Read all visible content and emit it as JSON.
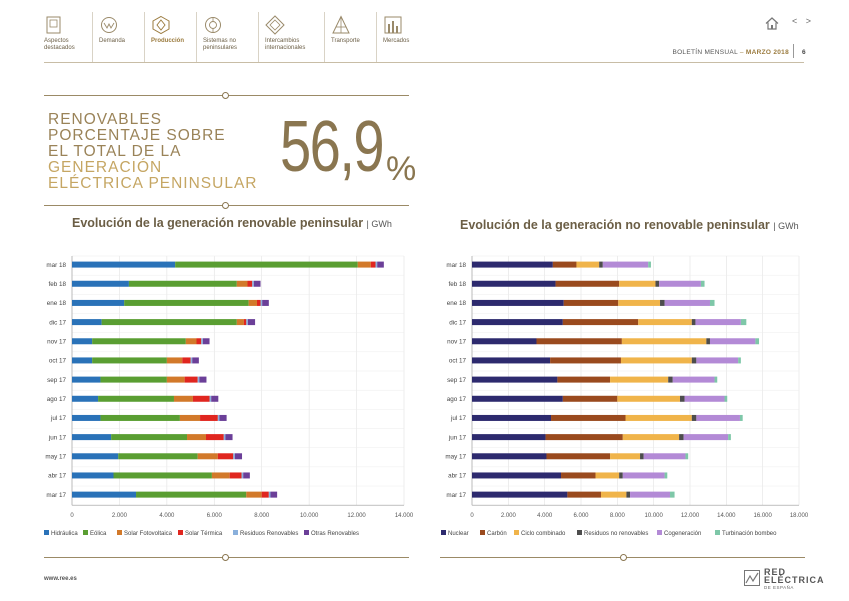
{
  "nav": {
    "items": [
      {
        "label": "Aspectos destacados",
        "icon": "document-icon"
      },
      {
        "label": "Demanda",
        "icon": "demand-icon"
      },
      {
        "label": "Producción",
        "icon": "production-icon"
      },
      {
        "label": "Sistemas no peninsulares",
        "icon": "islands-icon"
      },
      {
        "label": "Intercambios internacionales",
        "icon": "exchange-icon"
      },
      {
        "label": "Transporte",
        "icon": "tower-icon"
      },
      {
        "label": "Mercados",
        "icon": "market-icon"
      }
    ],
    "active_index": 2
  },
  "header": {
    "bulletin": "BOLETÍN MENSUAL",
    "separator": "–",
    "month": "MARZO 2018",
    "page": "6",
    "arrows": "< >"
  },
  "hero": {
    "line1": "RENOVABLES",
    "line2": "PORCENTAJE SOBRE",
    "line3a": "EL TOTAL DE LA",
    "line3b": "GENERACIÓN",
    "line4": "ELÉCTRICA PENINSULAR",
    "value": "56,9",
    "unit": "%"
  },
  "colors": {
    "accent": "#8a7650",
    "gold": "#c5a663",
    "title": "#6b5e45"
  },
  "footer": {
    "url": "www.ree.es",
    "logo_main": "RED ELÉCTRICA",
    "logo_sub": "DE ESPAÑA"
  },
  "chart_data": [
    {
      "type": "bar",
      "orientation": "horizontal",
      "stacked": true,
      "title": "Evolución de la generación renovable peninsular",
      "unit": "GWh",
      "categories": [
        "mar 18",
        "feb 18",
        "ene 18",
        "dic 17",
        "nov 17",
        "oct 17",
        "sep 17",
        "ago 17",
        "jul 17",
        "jun 17",
        "may 17",
        "abr 17",
        "mar 17"
      ],
      "xlim": [
        0,
        14000
      ],
      "xticks": [
        "0",
        "2.000",
        "4.000",
        "6.000",
        "8.000",
        "10.000",
        "12.000",
        "14.000"
      ],
      "legend_position": "bottom",
      "series": [
        {
          "name": "Hidráulica",
          "color": "#2a72b8",
          "values": [
            4350,
            2400,
            2200,
            1250,
            850,
            850,
            1200,
            1100,
            1200,
            1650,
            1950,
            1750,
            2700
          ]
        },
        {
          "name": "Eólica",
          "color": "#5a9e32",
          "values": [
            7700,
            4550,
            5250,
            5700,
            3950,
            3150,
            2800,
            3200,
            3350,
            3200,
            3350,
            4150,
            4650
          ]
        },
        {
          "name": "Solar Fotovoltaica",
          "color": "#d2792a",
          "values": [
            550,
            450,
            350,
            300,
            450,
            650,
            750,
            800,
            850,
            800,
            850,
            750,
            650
          ]
        },
        {
          "name": "Solar Térmica",
          "color": "#e0261f",
          "values": [
            200,
            200,
            150,
            100,
            200,
            350,
            550,
            700,
            750,
            750,
            650,
            500,
            300
          ]
        },
        {
          "name": "Residuos Renovables",
          "color": "#8ab0dc",
          "values": [
            70,
            70,
            70,
            70,
            70,
            70,
            70,
            70,
            70,
            70,
            70,
            70,
            70
          ]
        },
        {
          "name": "Otras Renovables",
          "color": "#6b3f98",
          "values": [
            280,
            280,
            280,
            300,
            280,
            280,
            300,
            300,
            300,
            300,
            300,
            280,
            280
          ]
        }
      ]
    },
    {
      "type": "bar",
      "orientation": "horizontal",
      "stacked": true,
      "title": "Evolución de la generación no renovable peninsular",
      "unit": "GWh",
      "categories": [
        "mar 18",
        "feb 18",
        "ene 18",
        "dic 17",
        "nov 17",
        "oct 17",
        "sep 17",
        "ago 17",
        "jul 17",
        "jun 17",
        "may 17",
        "abr 17",
        "mar 17"
      ],
      "xlim": [
        0,
        18000
      ],
      "xticks": [
        "0",
        "2.000",
        "4.000",
        "6.000",
        "8.000",
        "10.000",
        "12.000",
        "14.000",
        "16.000",
        "18.000"
      ],
      "legend_position": "bottom",
      "series": [
        {
          "name": "Nuclear",
          "color": "#2d2a6e",
          "values": [
            4450,
            4600,
            5050,
            5000,
            3550,
            4300,
            4700,
            5000,
            4350,
            4050,
            4100,
            4900,
            5250
          ]
        },
        {
          "name": "Carbón",
          "color": "#9a4a1e",
          "values": [
            1300,
            3500,
            3000,
            4150,
            4700,
            3900,
            2900,
            3000,
            4100,
            4250,
            3500,
            1900,
            1850
          ]
        },
        {
          "name": "Ciclo combinado",
          "color": "#f0b44a",
          "values": [
            1250,
            2000,
            2300,
            2950,
            4650,
            3900,
            3200,
            3450,
            3650,
            3100,
            1650,
            1300,
            1400
          ]
        },
        {
          "name": "Residuos no renovables",
          "color": "#4d4d4d",
          "values": [
            200,
            200,
            250,
            200,
            200,
            250,
            250,
            250,
            250,
            250,
            200,
            200,
            200
          ]
        },
        {
          "name": "Cogeneración",
          "color": "#b38ad6",
          "values": [
            2500,
            2300,
            2500,
            2500,
            2500,
            2300,
            2300,
            2200,
            2400,
            2450,
            2300,
            2300,
            2200
          ]
        },
        {
          "name": "Turbinación bombeo",
          "color": "#7ec7a8",
          "values": [
            150,
            200,
            250,
            300,
            200,
            150,
            150,
            150,
            150,
            150,
            150,
            150,
            250
          ]
        }
      ]
    }
  ]
}
